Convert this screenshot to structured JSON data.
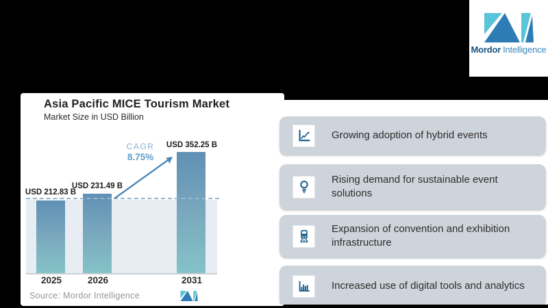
{
  "brand": {
    "name_bold": "Mordor",
    "name_light": "Intelligence",
    "mark_teal": "#59c5d8",
    "mark_blue": "#2e7cb4"
  },
  "chart_card": {
    "title": "Asia Pacific MICE Tourism Market",
    "subtitle": "Market Size in USD Billion",
    "cagr_label": "CAGR",
    "cagr_value": "8.75%",
    "source": "Source: Mordor Intelligence"
  },
  "chart_data": {
    "type": "bar",
    "title": "Asia Pacific MICE Tourism Market",
    "subtitle": "Market Size in USD Billion",
    "unit": "USD Billion",
    "categories": [
      "2025",
      "2026",
      "2031"
    ],
    "values": [
      212.83,
      231.49,
      352.25
    ],
    "value_labels": [
      "USD 212.83 B",
      "USD 231.49 B",
      "USD 352.25 B"
    ],
    "cagr_percent": 8.75,
    "cagr_arrow_between": [
      "2026",
      "2031"
    ],
    "reference_line_value": 212.83,
    "ylim": [
      0,
      400
    ],
    "grid": false,
    "legend": "none",
    "bar_color_top": "#6090b5",
    "bar_color_bottom": "#85c3c8",
    "plot_background": "#e7edf2",
    "source": "Source: Mordor Intelligence"
  },
  "highlights": [
    {
      "icon": "line-chart-icon",
      "text": "Growing adoption of hybrid events"
    },
    {
      "icon": "lightbulb-icon",
      "text": "Rising demand for sustainable event solutions"
    },
    {
      "icon": "train-icon",
      "text": "Expansion of convention and exhibition infrastructure"
    },
    {
      "icon": "bar-chart-icon",
      "text": "Increased use of digital tools and analytics"
    }
  ],
  "colors": {
    "background": "#000000",
    "card_bg": "#ffffff",
    "highlight_box_bg": "#ced4db",
    "icon_color": "#1d618a",
    "accent_blue": "#5f9ccb",
    "dashed_line": "#96b8d2"
  }
}
